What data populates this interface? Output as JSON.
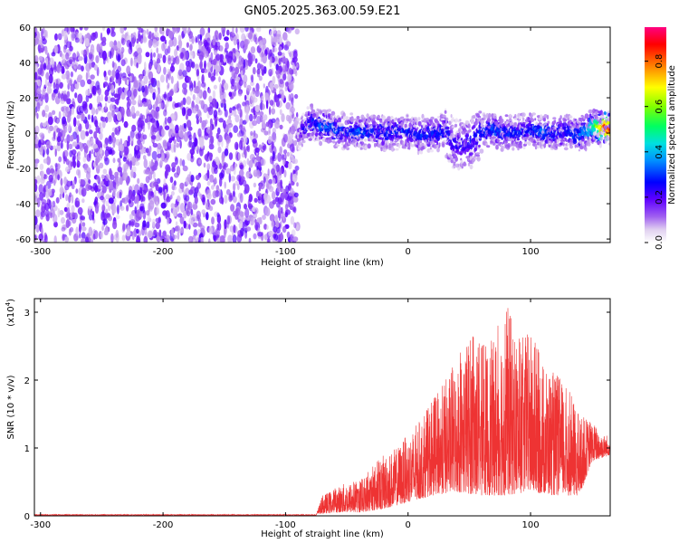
{
  "page": {
    "title": "GN05.2025.363.00.59.E21"
  },
  "chart_data": [
    {
      "type": "heatmap",
      "title": "GN05.2025.363.00.59.E21",
      "xlabel": "Height of straight line (km)",
      "ylabel": "Frequency (Hz)",
      "xlim": [
        -305,
        165
      ],
      "ylim": [
        -62,
        60
      ],
      "xticks": [
        -300,
        -200,
        -100,
        0,
        100
      ],
      "yticks": [
        -60,
        -40,
        -20,
        0,
        20,
        40,
        60
      ],
      "colorbar": {
        "label": "Normalized spectral amplitude",
        "range": [
          0,
          0.95
        ],
        "ticks": [
          0.0,
          0.2,
          0.4,
          0.6,
          0.8
        ],
        "colors": [
          "#e8e0f0",
          "#8000ff",
          "#0000ff",
          "#00c8ff",
          "#00ff80",
          "#80ff00",
          "#ffff00",
          "#ff8000",
          "#ff0000",
          "#ff00c0"
        ]
      },
      "noise_region": {
        "x": [
          -305,
          -90
        ],
        "amplitude": 0.1
      },
      "signal_ridge": {
        "x": [
          -90,
          -85,
          -80,
          -75,
          -70,
          -60,
          -50,
          -40,
          -30,
          -20,
          -10,
          0,
          10,
          20,
          30,
          40,
          50,
          60,
          70,
          80,
          90,
          100,
          110,
          120,
          130,
          140,
          150,
          160,
          165
        ],
        "y": [
          -2,
          2,
          6,
          5,
          4,
          2,
          1,
          0,
          1,
          0,
          1,
          0,
          -1,
          0,
          1,
          -8,
          -6,
          1,
          2,
          0,
          1,
          2,
          1,
          0,
          1,
          -1,
          3,
          3,
          2
        ],
        "peak_amplitude": [
          0.15,
          0.25,
          0.3,
          0.32,
          0.35,
          0.35,
          0.3,
          0.35,
          0.3,
          0.3,
          0.3,
          0.3,
          0.3,
          0.3,
          0.3,
          0.25,
          0.25,
          0.3,
          0.35,
          0.3,
          0.3,
          0.3,
          0.35,
          0.3,
          0.3,
          0.35,
          0.5,
          0.9,
          0.95
        ]
      }
    },
    {
      "type": "line",
      "xlabel": "Height of straight line (km)",
      "ylabel": "SNR (10 * v/v)",
      "scale_label": "(x10",
      "scale_exp": "4",
      "scale_close": ")",
      "xlim": [
        -305,
        165
      ],
      "ylim": [
        0,
        3.2
      ],
      "xticks": [
        -300,
        -200,
        -100,
        0,
        100
      ],
      "yticks": [
        0,
        1,
        2,
        3
      ],
      "series": [
        {
          "color": "#ee3333",
          "envelope_x": [
            -305,
            -75,
            -70,
            -60,
            -50,
            -40,
            -30,
            -20,
            -10,
            0,
            10,
            20,
            30,
            40,
            50,
            60,
            70,
            80,
            90,
            100,
            110,
            120,
            130,
            140,
            150,
            160,
            165
          ],
          "envelope_y": [
            0.02,
            0.02,
            0.3,
            0.4,
            0.5,
            0.5,
            0.7,
            0.9,
            1.0,
            1.2,
            1.4,
            1.7,
            2.0,
            2.3,
            2.7,
            2.5,
            2.6,
            3.2,
            2.6,
            2.7,
            2.3,
            2.1,
            1.9,
            1.5,
            1.4,
            1.2,
            1.2
          ],
          "base_x": [
            -305,
            -75,
            -60,
            -40,
            -20,
            0,
            20,
            40,
            60,
            80,
            100,
            120,
            140,
            150,
            165
          ],
          "base_y": [
            0.02,
            0.02,
            0.05,
            0.05,
            0.1,
            0.2,
            0.3,
            0.35,
            0.3,
            0.3,
            0.35,
            0.3,
            0.3,
            0.8,
            0.9
          ]
        }
      ]
    }
  ]
}
